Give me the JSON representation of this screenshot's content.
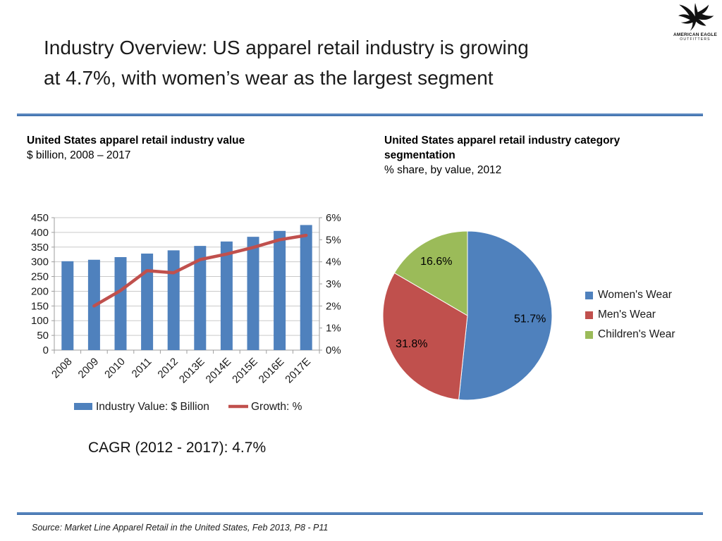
{
  "slide": {
    "title_lines": [
      "Industry Overview: US apparel retail industry is growing",
      "at 4.7%, with women’s wear as the largest segment"
    ],
    "logo_text_line1": "AMERICAN EAGLE",
    "logo_text_line2": "OUTFITTERS",
    "cagr_note": "CAGR (2012 - 2017): 4.7%",
    "source_note": "Source: Market Line Apparel Retail in the United States, Feb 2013, P8 - P11",
    "accent_color": "#4F81BD"
  },
  "chart_data": [
    {
      "type": "bar",
      "title": "United States apparel retail industry value",
      "subtitle": "$ billion, 2008 – 2017",
      "categories": [
        "2008",
        "2009",
        "2010",
        "2011",
        "2012",
        "2013E",
        "2014E",
        "2015E",
        "2016E",
        "2017E"
      ],
      "series": [
        {
          "name": "Industry Value: $ Billion",
          "type": "bar",
          "axis": "left",
          "color": "#4F81BD",
          "values": [
            302,
            307,
            316,
            328,
            339,
            354,
            369,
            385,
            405,
            425
          ]
        },
        {
          "name": "Growth: %",
          "type": "line",
          "axis": "right",
          "color": "#C0504D",
          "values": [
            null,
            2.0,
            2.7,
            3.6,
            3.5,
            4.1,
            4.35,
            4.65,
            5.0,
            5.2
          ]
        }
      ],
      "left_axis": {
        "min": 0,
        "max": 450,
        "step": 50
      },
      "right_axis": {
        "min": 0,
        "max": 6,
        "step": 1,
        "suffix": "%"
      },
      "grid": true,
      "legend_position": "bottom"
    },
    {
      "type": "pie",
      "title": "United States apparel retail industry category segmentation",
      "subtitle": "% share, by value, 2012",
      "labels": [
        "Women's Wear",
        "Men's Wear",
        "Children's Wear"
      ],
      "values": [
        51.7,
        31.8,
        16.6
      ],
      "colors": [
        "#4F81BD",
        "#C0504D",
        "#9BBB59"
      ],
      "data_label_suffix": "%",
      "start_angle_deg_from_top": 0,
      "direction": "clockwise",
      "legend_position": "right"
    }
  ]
}
